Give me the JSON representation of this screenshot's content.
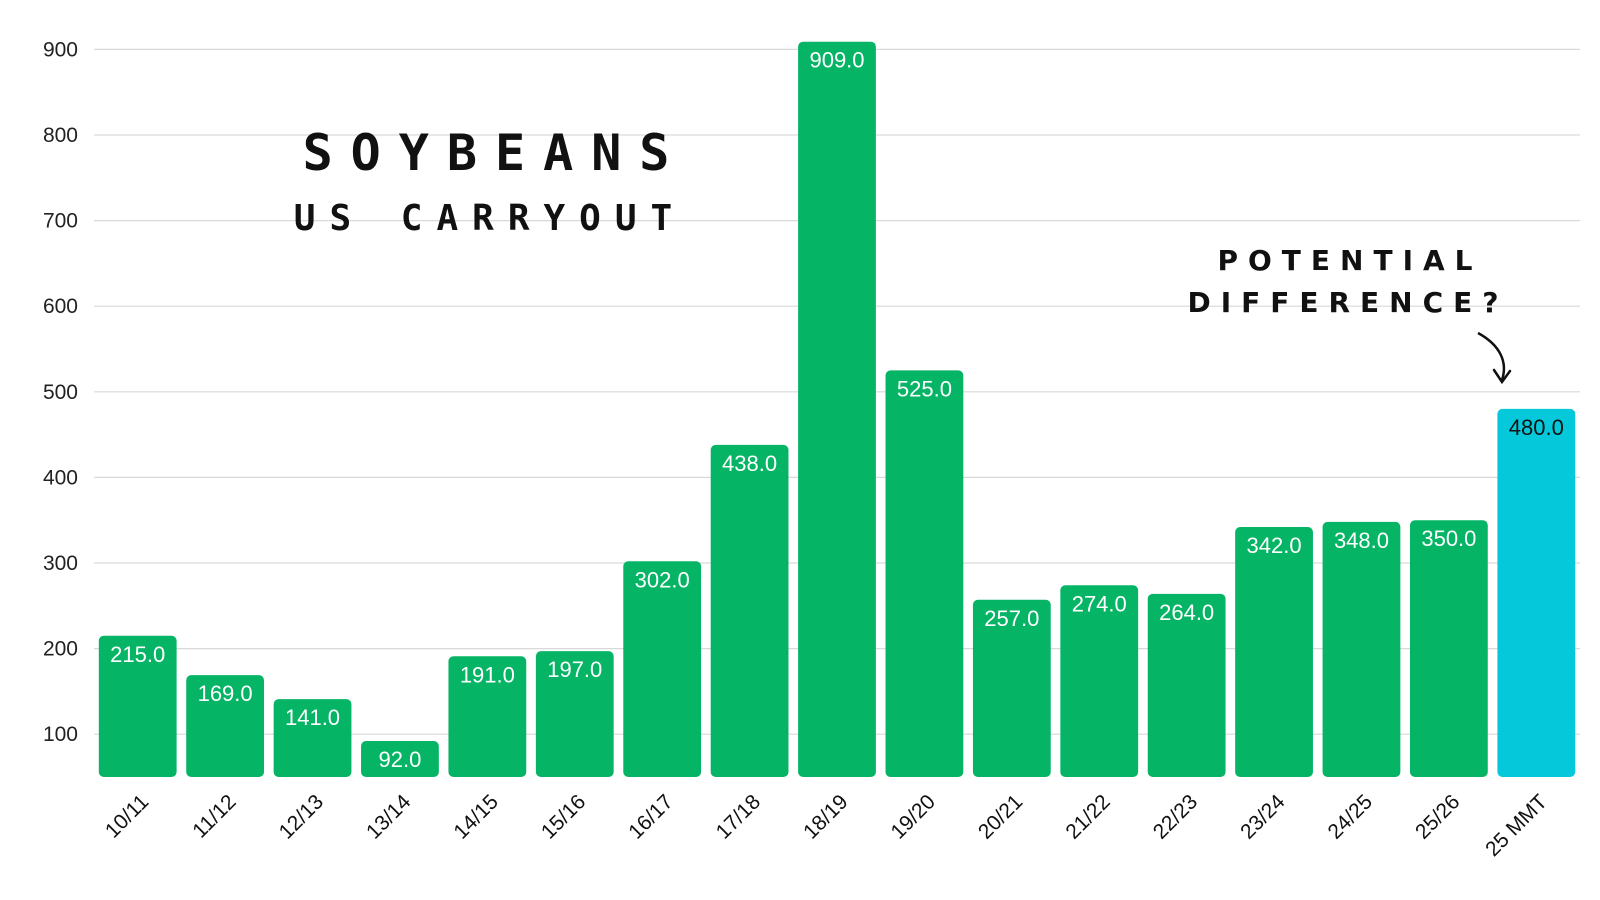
{
  "chart_data": {
    "type": "bar",
    "title": "SOYBEANS",
    "subtitle": "US CARRYOUT",
    "annotation": [
      "POTENTIAL",
      "DIFFERENCE?"
    ],
    "categories": [
      "10/11",
      "11/12",
      "12/13",
      "13/14",
      "14/15",
      "15/16",
      "16/17",
      "17/18",
      "18/19",
      "19/20",
      "20/21",
      "21/22",
      "22/23",
      "23/24",
      "24/25",
      "25/26",
      "25 MMT"
    ],
    "values": [
      215.0,
      169.0,
      141.0,
      92.0,
      191.0,
      197.0,
      302.0,
      438.0,
      909.0,
      525.0,
      257.0,
      274.0,
      264.0,
      342.0,
      348.0,
      350.0,
      480.0
    ],
    "value_labels": [
      "215.0",
      "169.0",
      "141.0",
      "92.0",
      "191.0",
      "197.0",
      "302.0",
      "438.0",
      "909.0",
      "525.0",
      "257.0",
      "274.0",
      "264.0",
      "342.0",
      "348.0",
      "350.0",
      "480.0"
    ],
    "ylim": [
      50,
      900
    ],
    "yticks": [
      100,
      200,
      300,
      400,
      500,
      600,
      700,
      800,
      900
    ],
    "grid": true,
    "colors": {
      "bar": "#05b565",
      "highlight_bar": "#05c9db",
      "grid": "#d9d9d9",
      "label_on_bar": "#ffffff",
      "label_on_highlight": "#111111"
    },
    "highlight_index": 16
  }
}
